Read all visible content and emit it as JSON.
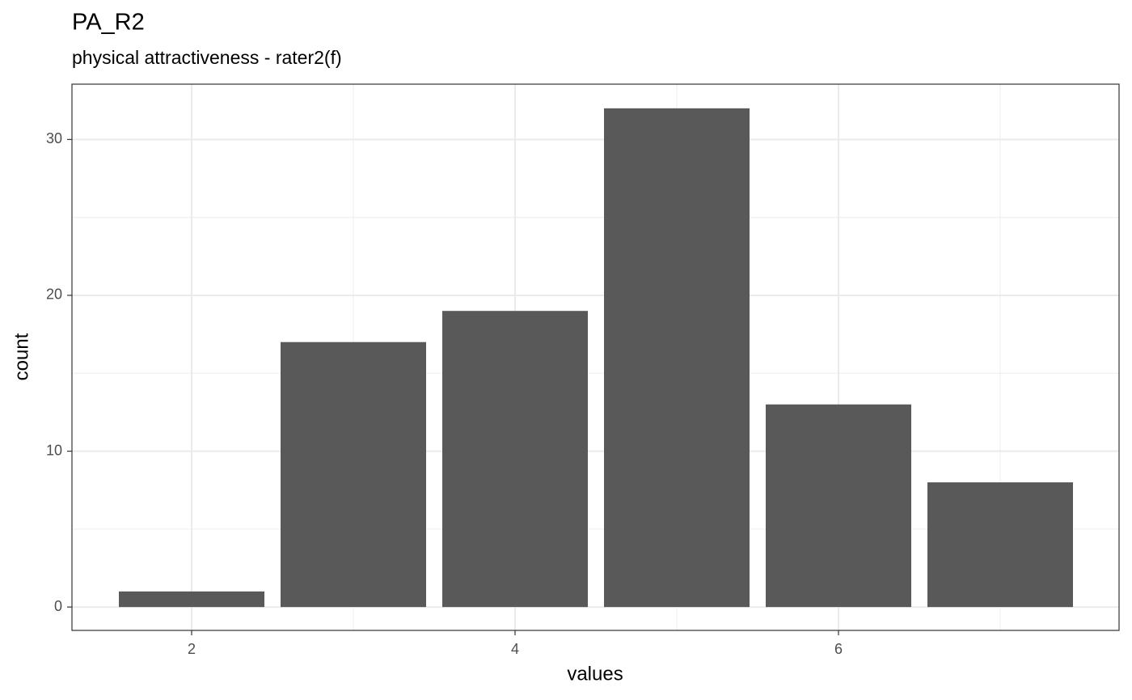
{
  "chart_data": {
    "type": "bar",
    "title": "PA_R2",
    "subtitle": "physical attractiveness - rater2(f)",
    "x_label": "values",
    "y_label": "count",
    "x": [
      2,
      3,
      4,
      5,
      6,
      7
    ],
    "values": [
      1,
      17,
      19,
      32,
      13,
      8
    ],
    "color": "#595959",
    "xlim": [
      1.26,
      7.735
    ],
    "xticks": [
      2,
      4,
      6
    ],
    "ylim": [
      -1.5,
      33.55
    ],
    "yticks": [
      0,
      10,
      20,
      30
    ],
    "grid": true
  }
}
